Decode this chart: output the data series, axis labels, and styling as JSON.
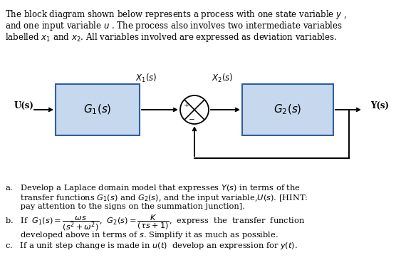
{
  "block1_label": "$G_1(s)$",
  "block2_label": "$G_2(s)$",
  "block_color": "#c5d8ed",
  "block_edge_color": "#2e5fa3",
  "block_lw": 1.5,
  "signal_Us": "U(s)",
  "signal_X1s": "$X_1(s)$",
  "signal_X2s": "$X_2(s)$",
  "signal_Ys": "Y(s)",
  "background_color": "#ffffff",
  "text_color": "#000000",
  "header_line1": "The block diagram shown below represents a process with one state variable $y$ ,",
  "header_line2": "and one input variable $u$ . The process also involves two intermediate variables",
  "header_line3": "labelled $x_1$ and $x_2$. All variables involved are expressed as deviation variables.",
  "qa_line1": "a.   Develop a Laplace domain model that expresses $Y(s)$ in terms of the",
  "qa_line2": "      transfer functions $G_1(s)$ and $G_2(s)$, and the input variable,$U(s)$. [HINT:",
  "qa_line3": "      pay attention to the signs on the summation junction].",
  "qb_line1": "b.   If  $G_1(s) = \\dfrac{\\omega s}{(s^2+\\omega^2)}$,  $G_2(s) = \\dfrac{K}{(\\tau s+1)}$,  express  the  transfer  function",
  "qb_line2": "      developed above in terms of $s$. Simplify it as much as possible.",
  "qc_line1": "c.   If a unit step change is made in $u(t)$  develop an expression for $y(t)$."
}
